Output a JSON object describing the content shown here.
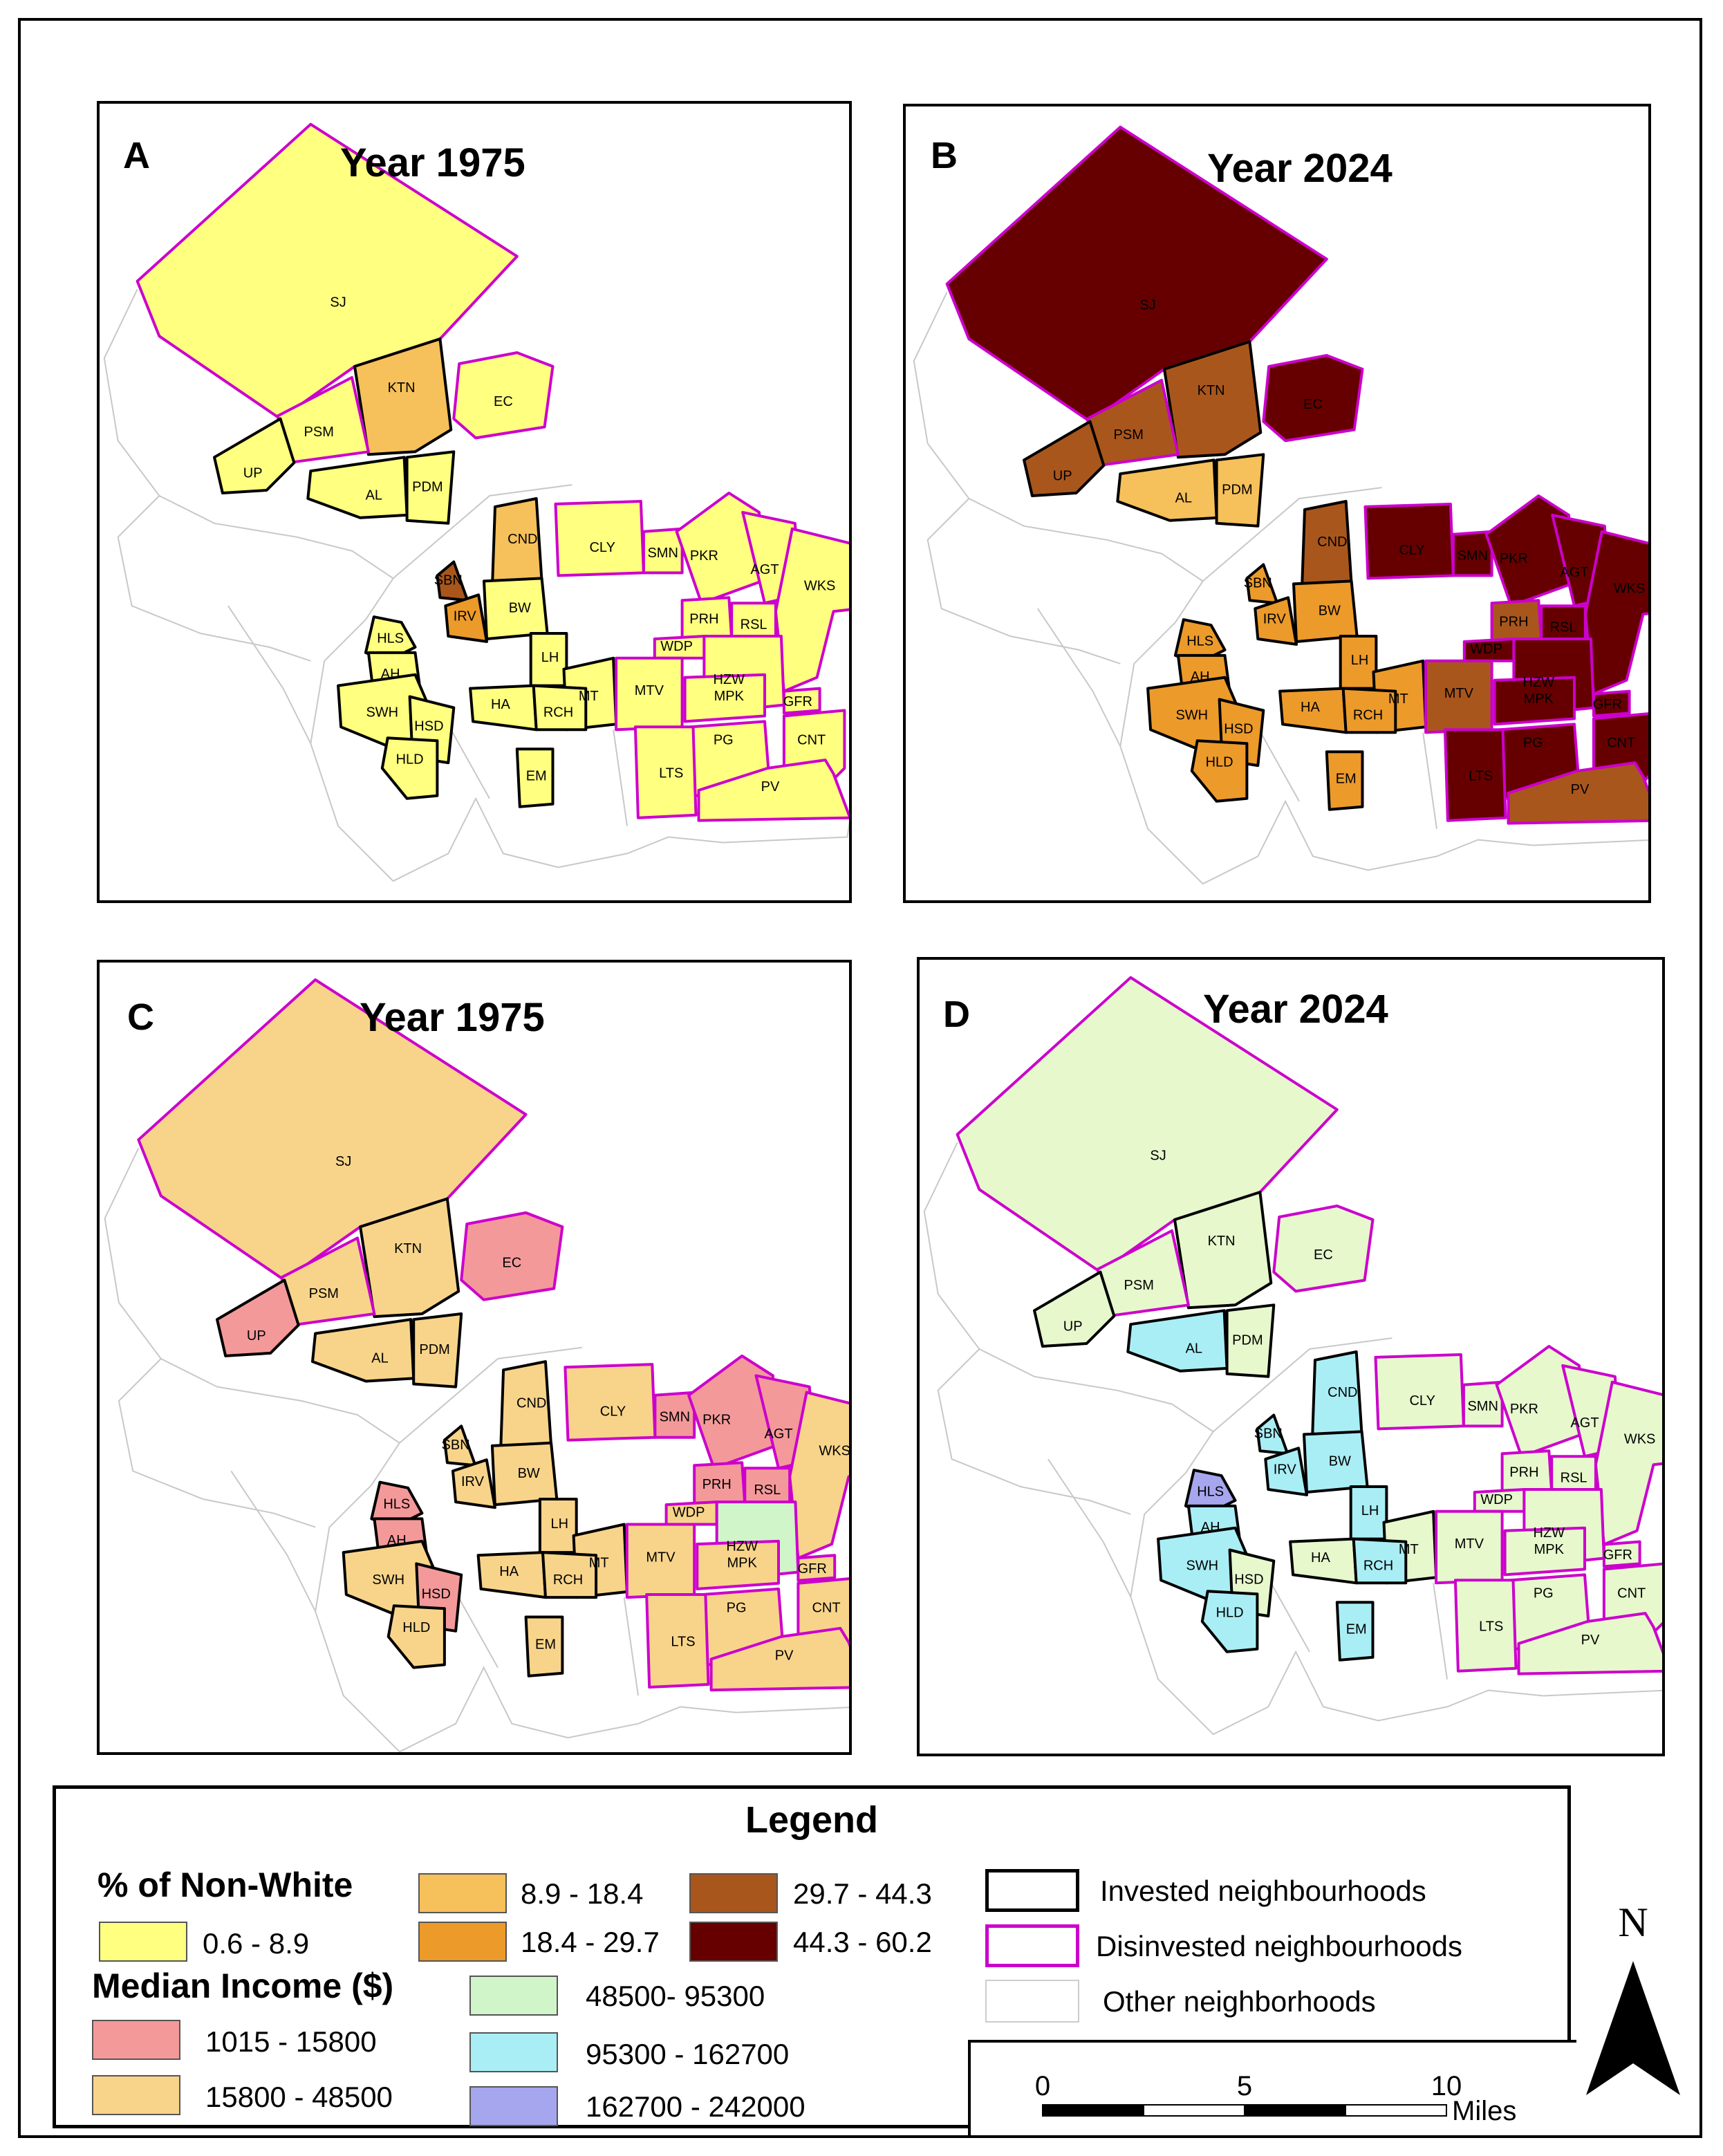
{
  "panels": [
    {
      "letter": "A",
      "title": "Year 1975"
    },
    {
      "letter": "B",
      "title": "Year 2024"
    },
    {
      "letter": "C",
      "title": "Year 1975"
    },
    {
      "letter": "D",
      "title": "Year 2024"
    }
  ],
  "maps": [
    {
      "SJ": "#FFFF80",
      "KTN": "#F6C05A",
      "EC": "#FFFF80",
      "PSM": "#FFFF80",
      "UP": "#FFFF80",
      "AL": "#FFFF80",
      "PDM": "#FFFF80",
      "CND": "#F6C05A",
      "SBN": "#A9561C",
      "IRV": "#EC9A2A",
      "MBW": "#FFFF80",
      "CLY": "#FFFF80",
      "SMN": "#FFFF80",
      "PKR": "#FFFF80",
      "AGT": "#FFFF80",
      "WKS": "#FFFF80",
      "PRH": "#FFFF80",
      "RSL": "#FFFF80",
      "WDP": "#FFFF80",
      "HZW": "#FFFF80",
      "GFR": "#FFFF80",
      "LH": "#FFFF80",
      "MT": "#FFFF80",
      "MTV": "#FFFF80",
      "MPK": "#FFFF80",
      "CNT": "#FFFF80",
      "HA": "#FFFF80",
      "RCH": "#FFFF80",
      "HLS": "#FFFF80",
      "AH": "#FFFF80",
      "SWH": "#FFFF80",
      "HSD": "#FFFF80",
      "HLD": "#FFFF80",
      "EM": "#FFFF80",
      "PG": "#FFFF80",
      "LTS": "#FFFF80",
      "PV": "#FFFF80"
    },
    {
      "SJ": "#660000",
      "KTN": "#A9561C",
      "EC": "#660000",
      "PSM": "#A9561C",
      "UP": "#A9561C",
      "AL": "#F6C05A",
      "PDM": "#F6C05A",
      "CND": "#A9561C",
      "SBN": "#EC9A2A",
      "IRV": "#EC9A2A",
      "MBW": "#EC9A2A",
      "CLY": "#660000",
      "SMN": "#660000",
      "PKR": "#660000",
      "AGT": "#660000",
      "WKS": "#660000",
      "PRH": "#A9561C",
      "RSL": "#660000",
      "WDP": "#660000",
      "HZW": "#660000",
      "GFR": "#660000",
      "LH": "#EC9A2A",
      "MT": "#EC9A2A",
      "MTV": "#A9561C",
      "MPK": "#660000",
      "CNT": "#660000",
      "HA": "#EC9A2A",
      "RCH": "#EC9A2A",
      "HLS": "#EC9A2A",
      "AH": "#EC9A2A",
      "SWH": "#EC9A2A",
      "HSD": "#EC9A2A",
      "HLD": "#EC9A2A",
      "EM": "#EC9A2A",
      "PG": "#660000",
      "LTS": "#660000",
      "PV": "#A9561C"
    },
    {
      "SJ": "#F8D48A",
      "KTN": "#F8D48A",
      "EC": "#F4999A",
      "PSM": "#F8D48A",
      "UP": "#F4999A",
      "AL": "#F8D48A",
      "PDM": "#F8D48A",
      "CND": "#F8D48A",
      "SBN": "#F8D48A",
      "IRV": "#F8D48A",
      "MBW": "#F8D48A",
      "CLY": "#F8D48A",
      "SMN": "#F4999A",
      "PKR": "#F4999A",
      "AGT": "#F4999A",
      "WKS": "#F8D48A",
      "PRH": "#F4999A",
      "RSL": "#F4999A",
      "WDP": "#F8D48A",
      "HZW": "#CFF5C9",
      "GFR": "#F8D48A",
      "LH": "#F8D48A",
      "MT": "#F8D48A",
      "MTV": "#F8D48A",
      "MPK": "#F8D48A",
      "CNT": "#F8D48A",
      "HA": "#F8D48A",
      "RCH": "#F8D48A",
      "HLS": "#F4999A",
      "AH": "#F4999A",
      "SWH": "#F8D48A",
      "HSD": "#F4999A",
      "HLD": "#F8D48A",
      "EM": "#F8D48A",
      "PG": "#F8D48A",
      "LTS": "#F8D48A",
      "PV": "#F8D48A"
    },
    {
      "SJ": "#E6F8CC",
      "KTN": "#E6F8CC",
      "EC": "#E6F8CC",
      "PSM": "#E6F8CC",
      "UP": "#E6F8CC",
      "AL": "#A9EEF5",
      "PDM": "#E6F8CC",
      "CND": "#A9EEF5",
      "SBN": "#A9EEF5",
      "IRV": "#A9EEF5",
      "MBW": "#A9EEF5",
      "CLY": "#E6F8CC",
      "SMN": "#E6F8CC",
      "PKR": "#E6F8CC",
      "AGT": "#E6F8CC",
      "WKS": "#E6F8CC",
      "PRH": "#E6F8CC",
      "RSL": "#E6F8CC",
      "WDP": "#E6F8CC",
      "HZW": "#E6F8CC",
      "GFR": "#E6F8CC",
      "LH": "#A9EEF5",
      "MT": "#E6F8CC",
      "MTV": "#E6F8CC",
      "MPK": "#E6F8CC",
      "CNT": "#E6F8CC",
      "HA": "#E6F8CC",
      "RCH": "#A9EEF5",
      "HLS": "#A6A6EE",
      "AH": "#A9EEF5",
      "SWH": "#A9EEF5",
      "HSD": "#E6F8CC",
      "HLD": "#A9EEF5",
      "EM": "#A9EEF5",
      "PG": "#E6F8CC",
      "LTS": "#E6F8CC",
      "PV": "#E6F8CC"
    }
  ],
  "neighborhoods": [
    {
      "code": "SJ",
      "status": "disinvested"
    },
    {
      "code": "KTN",
      "status": "invested"
    },
    {
      "code": "EC",
      "status": "disinvested"
    },
    {
      "code": "PSM",
      "status": "disinvested"
    },
    {
      "code": "UP",
      "status": "invested"
    },
    {
      "code": "AL",
      "status": "invested"
    },
    {
      "code": "PDM",
      "status": "invested"
    },
    {
      "code": "CND",
      "status": "invested"
    },
    {
      "code": "SBN",
      "status": "invested"
    },
    {
      "code": "IRV",
      "status": "invested"
    },
    {
      "code": "MBW",
      "status": "invested",
      "label": "BW"
    },
    {
      "code": "CLY",
      "status": "disinvested"
    },
    {
      "code": "SMN",
      "status": "disinvested"
    },
    {
      "code": "PKR",
      "status": "disinvested"
    },
    {
      "code": "AGT",
      "status": "disinvested"
    },
    {
      "code": "WKS",
      "status": "disinvested"
    },
    {
      "code": "PRH",
      "status": "disinvested"
    },
    {
      "code": "RSL",
      "status": "disinvested"
    },
    {
      "code": "WDP",
      "status": "disinvested"
    },
    {
      "code": "HZW",
      "status": "disinvested"
    },
    {
      "code": "GFR",
      "status": "disinvested"
    },
    {
      "code": "LH",
      "status": "invested"
    },
    {
      "code": "MT",
      "status": "invested"
    },
    {
      "code": "MTV",
      "status": "disinvested"
    },
    {
      "code": "MPK",
      "status": "disinvested"
    },
    {
      "code": "CNT",
      "status": "disinvested"
    },
    {
      "code": "HA",
      "status": "invested"
    },
    {
      "code": "RCH",
      "status": "invested"
    },
    {
      "code": "HLS",
      "status": "invested"
    },
    {
      "code": "AH",
      "status": "invested"
    },
    {
      "code": "SWH",
      "status": "invested"
    },
    {
      "code": "HSD",
      "status": "invested"
    },
    {
      "code": "HLD",
      "status": "invested"
    },
    {
      "code": "EM",
      "status": "invested"
    },
    {
      "code": "PG",
      "status": "disinvested"
    },
    {
      "code": "LTS",
      "status": "disinvested"
    },
    {
      "code": "PV",
      "status": "disinvested"
    }
  ],
  "legend": {
    "title": "Legend",
    "nonwhite_title": "% of Non-White",
    "nonwhite_classes": [
      {
        "label": "0.6 - 8.9",
        "color": "#FFFF80"
      },
      {
        "label": "8.9 - 18.4",
        "color": "#F6C05A"
      },
      {
        "label": "18.4 - 29.7",
        "color": "#EC9A2A"
      },
      {
        "label": "29.7 - 44.3",
        "color": "#A9561C"
      },
      {
        "label": "44.3 - 60.2",
        "color": "#660000"
      }
    ],
    "income_title": "Median Income ($)",
    "income_classes": [
      {
        "label": "1015 - 15800",
        "color": "#F4999A"
      },
      {
        "label": "15800 - 48500",
        "color": "#F8D48A"
      },
      {
        "label": "48500- 95300",
        "color": "#CFF5C9"
      },
      {
        "label": "95300 - 162700",
        "color": "#A9EEF5"
      },
      {
        "label": "162700 - 242000",
        "color": "#A6A6EE"
      }
    ],
    "outline_classes": [
      {
        "label": "Invested neighbourhoods",
        "color": "#000000"
      },
      {
        "label": "Disinvested neighbourhoods",
        "color": "#CC00CC"
      },
      {
        "label": "Other neighborhoods",
        "color": "#CCCCCC"
      }
    ]
  },
  "north_label": "N",
  "scale": {
    "ticks": [
      "0",
      "5",
      "10"
    ],
    "unit": "Miles"
  }
}
